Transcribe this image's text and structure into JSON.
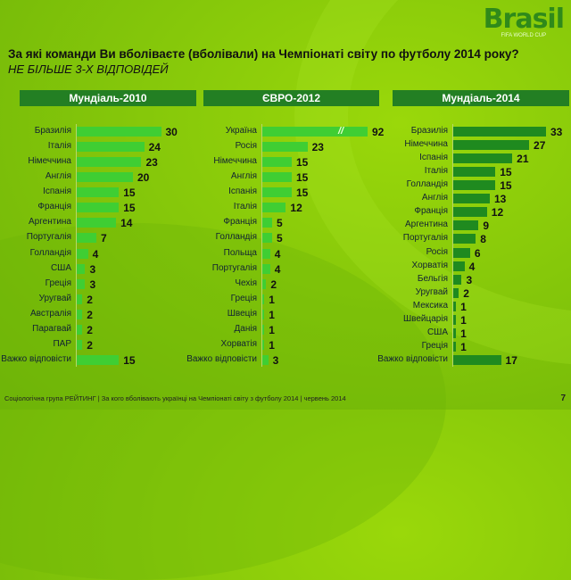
{
  "logo": {
    "title": "Brasil",
    "subtitle": "FIFA WORLD CUP"
  },
  "question": "За які команди Ви вболіваєте (вболівали) на Чемпіонаті світу по футболу 2014 року?",
  "note": "НЕ БІЛЬШЕ 3-Х ВІДПОВІДЕЙ",
  "footer": "Соціологічна група РЕЙТИНГ  |  За кого вболівають українці на Чемпіонаті світу з футболу 2014  |  червень 2014",
  "page_number": "7",
  "colors": {
    "bar_bright": "#3fce33",
    "bar_dark": "#1f8a1f",
    "header": "#237f23"
  },
  "chart_data": [
    {
      "type": "bar",
      "orientation": "horizontal",
      "title": "Мундіаль-2010",
      "categories": [
        "Бразилія",
        "Італія",
        "Німеччина",
        "Англія",
        "Іспанія",
        "Франція",
        "Аргентина",
        "Португалія",
        "Голландія",
        "США",
        "Греція",
        "Уругвай",
        "Австралія",
        "Парагвай",
        "ПАР",
        "Важко відповісти"
      ],
      "values": [
        30,
        24,
        23,
        20,
        15,
        15,
        14,
        7,
        4,
        3,
        3,
        2,
        2,
        2,
        2,
        15
      ]
    },
    {
      "type": "bar",
      "orientation": "horizontal",
      "title": "ЄВРО-2012",
      "axis_break": "//",
      "categories": [
        "Україна",
        "Росія",
        "Німеччина",
        "Англія",
        "Іспанія",
        "Італія",
        "Франція",
        "Голландія",
        "Польща",
        "Португалія",
        "Чехія",
        "Греція",
        "Швеція",
        "Данія",
        "Хорватія",
        "Важко відповісти"
      ],
      "values": [
        92,
        23,
        15,
        15,
        15,
        12,
        5,
        5,
        4,
        4,
        2,
        1,
        1,
        1,
        1,
        3
      ]
    },
    {
      "type": "bar",
      "orientation": "horizontal",
      "title": "Мундіаль-2014",
      "categories": [
        "Бразилія",
        "Німеччина",
        "Іспанія",
        "Італія",
        "Голландія",
        "Англія",
        "Франція",
        "Аргентина",
        "Португалія",
        "Росія",
        "Хорватія",
        "Бельгія",
        "Уругвай",
        "Мексика",
        "Швейцарія",
        "США",
        "Греція",
        "Важко відповісти"
      ],
      "values": [
        33,
        27,
        21,
        15,
        15,
        13,
        12,
        9,
        8,
        6,
        4,
        3,
        2,
        1,
        1,
        1,
        1,
        17
      ]
    }
  ]
}
